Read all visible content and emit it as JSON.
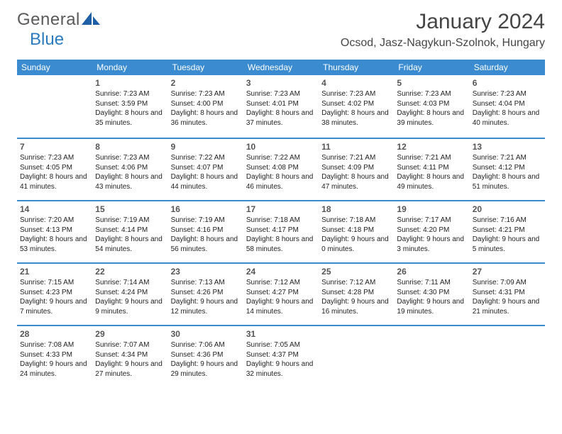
{
  "brand": {
    "name1": "General",
    "name2": "Blue"
  },
  "title": {
    "month": "January 2024",
    "location": "Ocsod, Jasz-Nagykun-Szolnok, Hungary"
  },
  "colors": {
    "header_bg": "#3a8bd0",
    "header_text": "#ffffff",
    "divider": "#3a8bd0",
    "brand_gray": "#5a5a5a",
    "brand_blue": "#2b7bbf",
    "text": "#222222",
    "daynum": "#555555",
    "background": "#ffffff"
  },
  "typography": {
    "month_fontsize": 30,
    "location_fontsize": 16,
    "dayhead_fontsize": 12,
    "daynum_fontsize": 12,
    "body_fontsize": 10
  },
  "dayNames": [
    "Sunday",
    "Monday",
    "Tuesday",
    "Wednesday",
    "Thursday",
    "Friday",
    "Saturday"
  ],
  "weeks": [
    [
      {
        "n": "",
        "sunrise": "",
        "sunset": "",
        "daylight": ""
      },
      {
        "n": "1",
        "sunrise": "Sunrise: 7:23 AM",
        "sunset": "Sunset: 3:59 PM",
        "daylight": "Daylight: 8 hours and 35 minutes."
      },
      {
        "n": "2",
        "sunrise": "Sunrise: 7:23 AM",
        "sunset": "Sunset: 4:00 PM",
        "daylight": "Daylight: 8 hours and 36 minutes."
      },
      {
        "n": "3",
        "sunrise": "Sunrise: 7:23 AM",
        "sunset": "Sunset: 4:01 PM",
        "daylight": "Daylight: 8 hours and 37 minutes."
      },
      {
        "n": "4",
        "sunrise": "Sunrise: 7:23 AM",
        "sunset": "Sunset: 4:02 PM",
        "daylight": "Daylight: 8 hours and 38 minutes."
      },
      {
        "n": "5",
        "sunrise": "Sunrise: 7:23 AM",
        "sunset": "Sunset: 4:03 PM",
        "daylight": "Daylight: 8 hours and 39 minutes."
      },
      {
        "n": "6",
        "sunrise": "Sunrise: 7:23 AM",
        "sunset": "Sunset: 4:04 PM",
        "daylight": "Daylight: 8 hours and 40 minutes."
      }
    ],
    [
      {
        "n": "7",
        "sunrise": "Sunrise: 7:23 AM",
        "sunset": "Sunset: 4:05 PM",
        "daylight": "Daylight: 8 hours and 41 minutes."
      },
      {
        "n": "8",
        "sunrise": "Sunrise: 7:23 AM",
        "sunset": "Sunset: 4:06 PM",
        "daylight": "Daylight: 8 hours and 43 minutes."
      },
      {
        "n": "9",
        "sunrise": "Sunrise: 7:22 AM",
        "sunset": "Sunset: 4:07 PM",
        "daylight": "Daylight: 8 hours and 44 minutes."
      },
      {
        "n": "10",
        "sunrise": "Sunrise: 7:22 AM",
        "sunset": "Sunset: 4:08 PM",
        "daylight": "Daylight: 8 hours and 46 minutes."
      },
      {
        "n": "11",
        "sunrise": "Sunrise: 7:21 AM",
        "sunset": "Sunset: 4:09 PM",
        "daylight": "Daylight: 8 hours and 47 minutes."
      },
      {
        "n": "12",
        "sunrise": "Sunrise: 7:21 AM",
        "sunset": "Sunset: 4:11 PM",
        "daylight": "Daylight: 8 hours and 49 minutes."
      },
      {
        "n": "13",
        "sunrise": "Sunrise: 7:21 AM",
        "sunset": "Sunset: 4:12 PM",
        "daylight": "Daylight: 8 hours and 51 minutes."
      }
    ],
    [
      {
        "n": "14",
        "sunrise": "Sunrise: 7:20 AM",
        "sunset": "Sunset: 4:13 PM",
        "daylight": "Daylight: 8 hours and 53 minutes."
      },
      {
        "n": "15",
        "sunrise": "Sunrise: 7:19 AM",
        "sunset": "Sunset: 4:14 PM",
        "daylight": "Daylight: 8 hours and 54 minutes."
      },
      {
        "n": "16",
        "sunrise": "Sunrise: 7:19 AM",
        "sunset": "Sunset: 4:16 PM",
        "daylight": "Daylight: 8 hours and 56 minutes."
      },
      {
        "n": "17",
        "sunrise": "Sunrise: 7:18 AM",
        "sunset": "Sunset: 4:17 PM",
        "daylight": "Daylight: 8 hours and 58 minutes."
      },
      {
        "n": "18",
        "sunrise": "Sunrise: 7:18 AM",
        "sunset": "Sunset: 4:18 PM",
        "daylight": "Daylight: 9 hours and 0 minutes."
      },
      {
        "n": "19",
        "sunrise": "Sunrise: 7:17 AM",
        "sunset": "Sunset: 4:20 PM",
        "daylight": "Daylight: 9 hours and 3 minutes."
      },
      {
        "n": "20",
        "sunrise": "Sunrise: 7:16 AM",
        "sunset": "Sunset: 4:21 PM",
        "daylight": "Daylight: 9 hours and 5 minutes."
      }
    ],
    [
      {
        "n": "21",
        "sunrise": "Sunrise: 7:15 AM",
        "sunset": "Sunset: 4:23 PM",
        "daylight": "Daylight: 9 hours and 7 minutes."
      },
      {
        "n": "22",
        "sunrise": "Sunrise: 7:14 AM",
        "sunset": "Sunset: 4:24 PM",
        "daylight": "Daylight: 9 hours and 9 minutes."
      },
      {
        "n": "23",
        "sunrise": "Sunrise: 7:13 AM",
        "sunset": "Sunset: 4:26 PM",
        "daylight": "Daylight: 9 hours and 12 minutes."
      },
      {
        "n": "24",
        "sunrise": "Sunrise: 7:12 AM",
        "sunset": "Sunset: 4:27 PM",
        "daylight": "Daylight: 9 hours and 14 minutes."
      },
      {
        "n": "25",
        "sunrise": "Sunrise: 7:12 AM",
        "sunset": "Sunset: 4:28 PM",
        "daylight": "Daylight: 9 hours and 16 minutes."
      },
      {
        "n": "26",
        "sunrise": "Sunrise: 7:11 AM",
        "sunset": "Sunset: 4:30 PM",
        "daylight": "Daylight: 9 hours and 19 minutes."
      },
      {
        "n": "27",
        "sunrise": "Sunrise: 7:09 AM",
        "sunset": "Sunset: 4:31 PM",
        "daylight": "Daylight: 9 hours and 21 minutes."
      }
    ],
    [
      {
        "n": "28",
        "sunrise": "Sunrise: 7:08 AM",
        "sunset": "Sunset: 4:33 PM",
        "daylight": "Daylight: 9 hours and 24 minutes."
      },
      {
        "n": "29",
        "sunrise": "Sunrise: 7:07 AM",
        "sunset": "Sunset: 4:34 PM",
        "daylight": "Daylight: 9 hours and 27 minutes."
      },
      {
        "n": "30",
        "sunrise": "Sunrise: 7:06 AM",
        "sunset": "Sunset: 4:36 PM",
        "daylight": "Daylight: 9 hours and 29 minutes."
      },
      {
        "n": "31",
        "sunrise": "Sunrise: 7:05 AM",
        "sunset": "Sunset: 4:37 PM",
        "daylight": "Daylight: 9 hours and 32 minutes."
      },
      {
        "n": "",
        "sunrise": "",
        "sunset": "",
        "daylight": ""
      },
      {
        "n": "",
        "sunrise": "",
        "sunset": "",
        "daylight": ""
      },
      {
        "n": "",
        "sunrise": "",
        "sunset": "",
        "daylight": ""
      }
    ]
  ]
}
